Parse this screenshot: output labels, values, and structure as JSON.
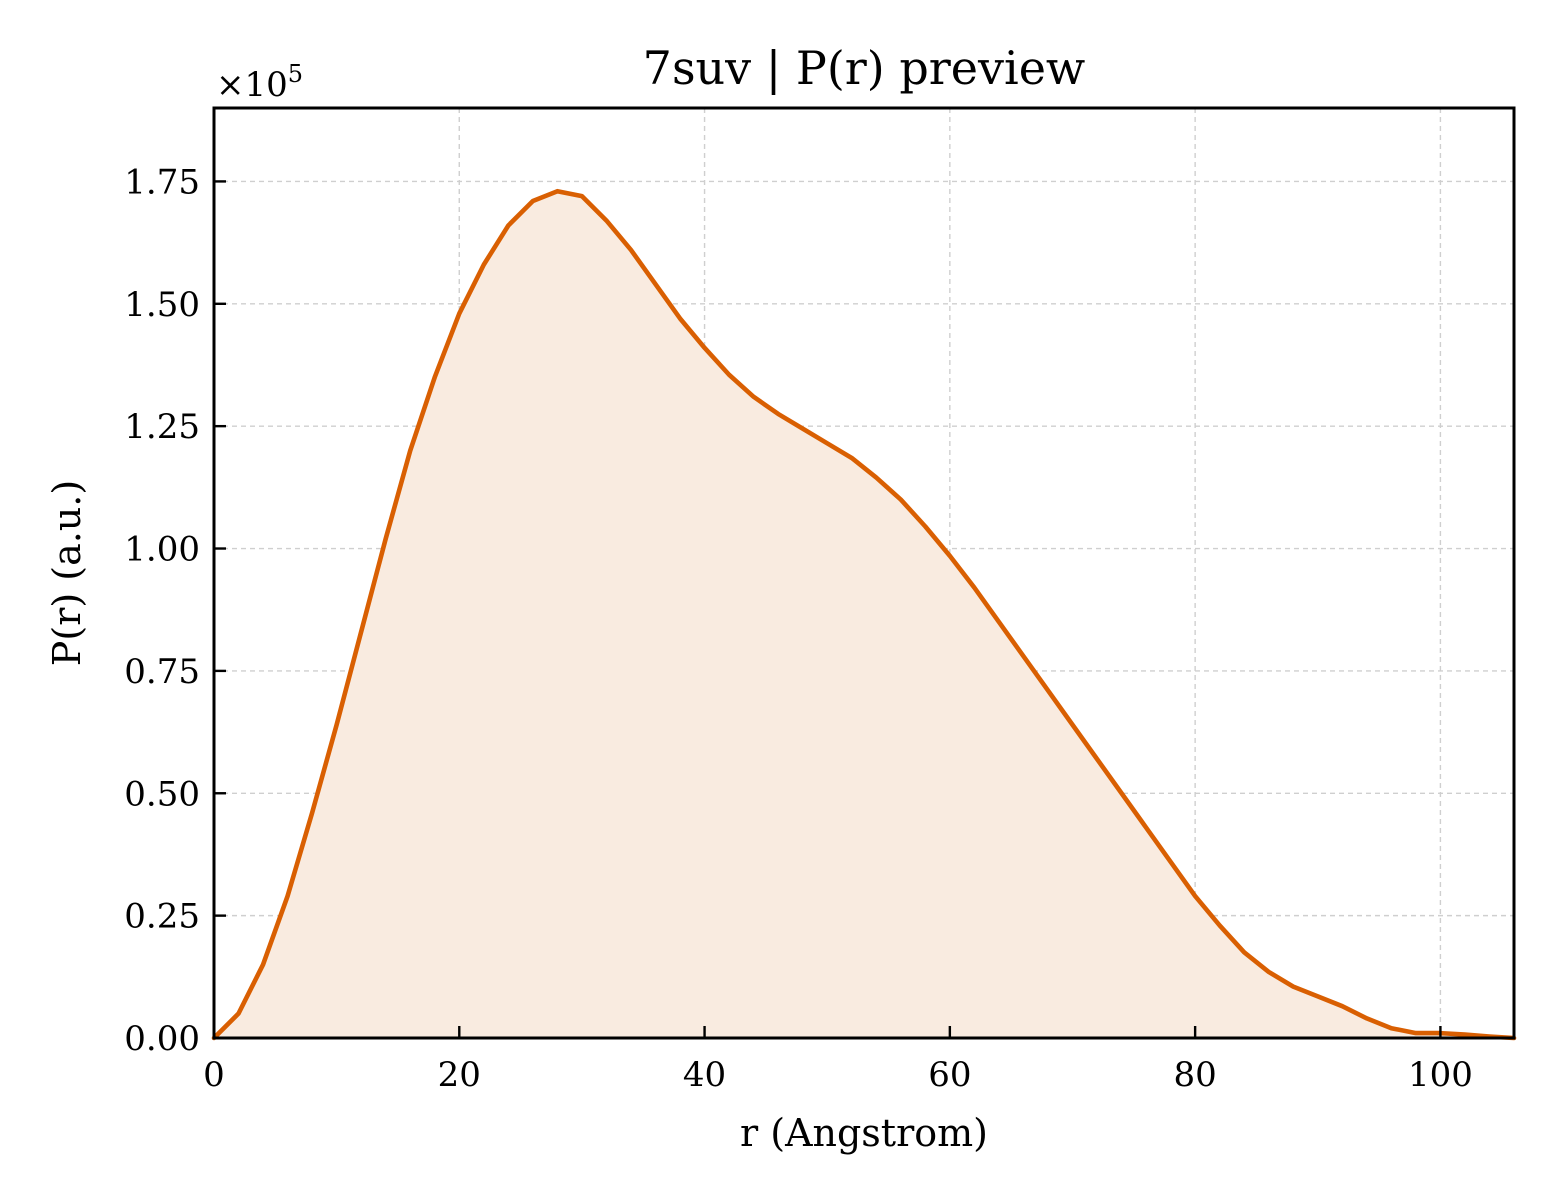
{
  "chart_data": {
    "type": "area",
    "title": "7suv | P(r) preview",
    "xlabel": "r (Angstrom)",
    "ylabel": "P(r) (a.u.)",
    "y_multiplier_label": "×10",
    "y_multiplier_exponent": "5",
    "xlim": [
      0,
      106
    ],
    "ylim": [
      0,
      1.9
    ],
    "xticks": [
      0,
      20,
      40,
      60,
      80,
      100
    ],
    "xtick_labels": [
      "0",
      "20",
      "40",
      "60",
      "80",
      "100"
    ],
    "yticks": [
      0,
      0.25,
      0.5,
      0.75,
      1.0,
      1.25,
      1.5,
      1.75
    ],
    "ytick_labels": [
      "0.00",
      "0.25",
      "0.50",
      "0.75",
      "1.00",
      "1.25",
      "1.50",
      "1.75"
    ],
    "grid": true,
    "line_color": "#d95f02",
    "fill_color": "#f9ebe0",
    "series": [
      {
        "x": [
          0,
          2,
          4,
          6,
          8,
          10,
          12,
          14,
          16,
          18,
          20,
          22,
          24,
          26,
          28,
          30,
          32,
          34,
          36,
          38,
          40,
          42,
          44,
          46,
          48,
          50,
          52,
          54,
          56,
          58,
          60,
          62,
          64,
          66,
          68,
          70,
          72,
          74,
          76,
          78,
          80,
          82,
          84,
          86,
          88,
          90,
          92,
          94,
          96,
          98,
          100,
          102,
          104,
          106
        ],
        "y": [
          0.0,
          0.05,
          0.15,
          0.29,
          0.46,
          0.64,
          0.83,
          1.02,
          1.2,
          1.35,
          1.48,
          1.58,
          1.66,
          1.71,
          1.73,
          1.72,
          1.67,
          1.61,
          1.54,
          1.47,
          1.41,
          1.355,
          1.31,
          1.275,
          1.245,
          1.215,
          1.185,
          1.145,
          1.1,
          1.045,
          0.985,
          0.92,
          0.85,
          0.78,
          0.71,
          0.64,
          0.57,
          0.5,
          0.43,
          0.36,
          0.29,
          0.23,
          0.175,
          0.135,
          0.105,
          0.085,
          0.065,
          0.04,
          0.02,
          0.01,
          0.01,
          0.007,
          0.003,
          0.0
        ]
      }
    ]
  }
}
